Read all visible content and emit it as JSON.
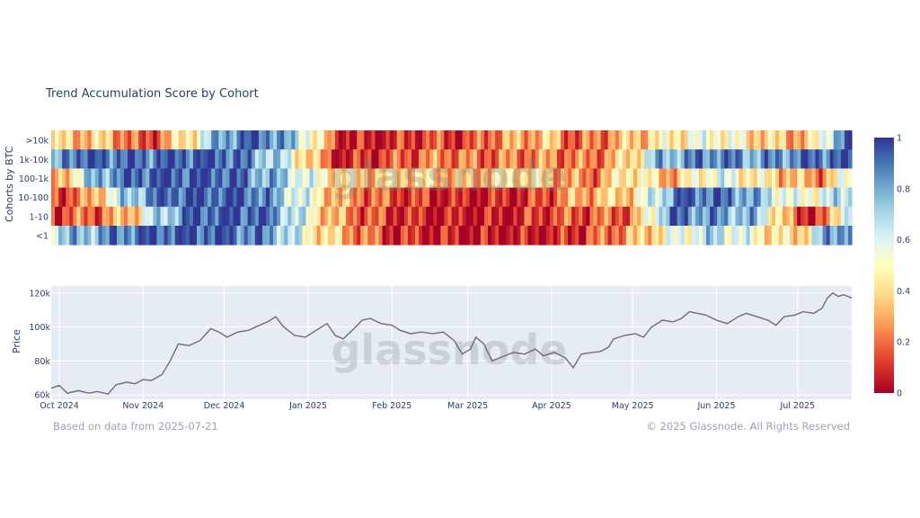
{
  "title": "Trend Accumulation Score by Cohort",
  "watermark": "glassnode",
  "footer": {
    "left": "Based on data from 2025-07-21",
    "right": "© 2025 Glassnode. All Rights Reserved"
  },
  "chart_data": [
    {
      "type": "heatmap",
      "title": "Trend Accumulation Score by Cohort",
      "ylabel": "Cohorts by BTC",
      "rows": [
        ">10k",
        "1k-10k",
        "100-1k",
        "10-100",
        "1-10",
        "<1"
      ],
      "x_range": [
        "2024-09-28",
        "2025-07-21"
      ],
      "colorscale": {
        "range": [
          0,
          1
        ],
        "ticks": [
          "0",
          "0.2",
          "0.4",
          "0.6",
          "0.8",
          "1"
        ],
        "colors": [
          "#a50026",
          "#d73027",
          "#f46d43",
          "#fdae61",
          "#fee090",
          "#ffffbf",
          "#e0f3f8",
          "#abd9e9",
          "#74add1",
          "#4575b4",
          "#313695"
        ]
      },
      "x_tick_labels": [
        "Oct 2024",
        "Nov 2024",
        "Dec 2024",
        "Jan 2025",
        "Feb 2025",
        "Mar 2025",
        "Apr 2025",
        "May 2025",
        "Jun 2025",
        "Jul 2025"
      ],
      "series": [
        {
          "name": ">10k",
          "keyframes": [
            [
              "2024-09-28",
              0.35
            ],
            [
              "2024-10-20",
              0.35
            ],
            [
              "2024-11-01",
              0.1
            ],
            [
              "2024-11-20",
              0.5
            ],
            [
              "2024-12-01",
              0.85
            ],
            [
              "2024-12-15",
              0.95
            ],
            [
              "2025-01-01",
              0.6
            ],
            [
              "2025-01-12",
              0.1
            ],
            [
              "2025-01-25",
              0.05
            ],
            [
              "2025-02-15",
              0.15
            ],
            [
              "2025-03-01",
              0.1
            ],
            [
              "2025-03-10",
              0.25
            ],
            [
              "2025-04-01",
              0.35
            ],
            [
              "2025-04-10",
              0.15
            ],
            [
              "2025-05-01",
              0.35
            ],
            [
              "2025-05-15",
              0.45
            ],
            [
              "2025-06-01",
              0.55
            ],
            [
              "2025-06-15",
              0.4
            ],
            [
              "2025-07-05",
              0.3
            ],
            [
              "2025-07-15",
              0.8
            ],
            [
              "2025-07-21",
              0.95
            ]
          ]
        },
        {
          "name": "1k-10k",
          "keyframes": [
            [
              "2024-09-28",
              0.6
            ],
            [
              "2024-10-05",
              0.95
            ],
            [
              "2024-11-01",
              0.9
            ],
            [
              "2024-11-15",
              0.95
            ],
            [
              "2024-12-01",
              0.95
            ],
            [
              "2024-12-20",
              0.7
            ],
            [
              "2025-01-01",
              0.4
            ],
            [
              "2025-01-12",
              0.05
            ],
            [
              "2025-02-01",
              0.15
            ],
            [
              "2025-02-20",
              0.25
            ],
            [
              "2025-03-05",
              0.2
            ],
            [
              "2025-04-01",
              0.25
            ],
            [
              "2025-04-15",
              0.2
            ],
            [
              "2025-05-01",
              0.4
            ],
            [
              "2025-05-10",
              0.75
            ],
            [
              "2025-06-01",
              0.9
            ],
            [
              "2025-06-15",
              0.8
            ],
            [
              "2025-07-05",
              0.9
            ],
            [
              "2025-07-21",
              0.95
            ]
          ]
        },
        {
          "name": "100-1k",
          "keyframes": [
            [
              "2024-09-28",
              0.2
            ],
            [
              "2024-10-15",
              0.8
            ],
            [
              "2024-11-01",
              0.95
            ],
            [
              "2024-12-01",
              0.95
            ],
            [
              "2024-12-25",
              0.7
            ],
            [
              "2025-01-05",
              0.5
            ],
            [
              "2025-01-20",
              0.35
            ],
            [
              "2025-02-10",
              0.4
            ],
            [
              "2025-03-01",
              0.3
            ],
            [
              "2025-03-20",
              0.45
            ],
            [
              "2025-04-15",
              0.2
            ],
            [
              "2025-05-01",
              0.5
            ],
            [
              "2025-05-15",
              0.3
            ],
            [
              "2025-06-01",
              0.6
            ],
            [
              "2025-06-20",
              0.4
            ],
            [
              "2025-07-10",
              0.25
            ],
            [
              "2025-07-21",
              0.6
            ]
          ]
        },
        {
          "name": "10-100",
          "keyframes": [
            [
              "2024-09-28",
              0.15
            ],
            [
              "2024-10-10",
              0.2
            ],
            [
              "2024-10-25",
              0.7
            ],
            [
              "2024-11-10",
              0.95
            ],
            [
              "2024-12-10",
              0.95
            ],
            [
              "2025-01-01",
              0.55
            ],
            [
              "2025-01-12",
              0.3
            ],
            [
              "2025-02-01",
              0.15
            ],
            [
              "2025-03-01",
              0.05
            ],
            [
              "2025-03-25",
              0.1
            ],
            [
              "2025-04-10",
              0.3
            ],
            [
              "2025-05-01",
              0.4
            ],
            [
              "2025-05-20",
              0.95
            ],
            [
              "2025-06-10",
              0.85
            ],
            [
              "2025-07-01",
              0.5
            ],
            [
              "2025-07-21",
              0.7
            ]
          ]
        },
        {
          "name": "1-10",
          "keyframes": [
            [
              "2024-09-28",
              0.15
            ],
            [
              "2024-10-15",
              0.2
            ],
            [
              "2024-10-28",
              0.35
            ],
            [
              "2024-11-05",
              0.65
            ],
            [
              "2024-11-20",
              0.95
            ],
            [
              "2024-12-15",
              0.95
            ],
            [
              "2025-01-01",
              0.55
            ],
            [
              "2025-01-10",
              0.3
            ],
            [
              "2025-01-25",
              0.15
            ],
            [
              "2025-02-15",
              0.05
            ],
            [
              "2025-03-15",
              0.05
            ],
            [
              "2025-04-01",
              0.15
            ],
            [
              "2025-05-01",
              0.2
            ],
            [
              "2025-05-15",
              0.9
            ],
            [
              "2025-06-15",
              0.75
            ],
            [
              "2025-06-25",
              0.4
            ],
            [
              "2025-07-01",
              0.1
            ],
            [
              "2025-07-12",
              0.15
            ],
            [
              "2025-07-21",
              0.85
            ]
          ]
        },
        {
          "name": "<1",
          "keyframes": [
            [
              "2024-09-28",
              0.7
            ],
            [
              "2024-10-15",
              0.8
            ],
            [
              "2024-11-01",
              0.95
            ],
            [
              "2024-12-01",
              0.95
            ],
            [
              "2024-12-20",
              0.8
            ],
            [
              "2025-01-01",
              0.5
            ],
            [
              "2025-01-15",
              0.3
            ],
            [
              "2025-02-01",
              0.1
            ],
            [
              "2025-03-01",
              0.05
            ],
            [
              "2025-04-01",
              0.05
            ],
            [
              "2025-04-15",
              0.15
            ],
            [
              "2025-05-01",
              0.3
            ],
            [
              "2025-05-15",
              0.5
            ],
            [
              "2025-06-01",
              0.7
            ],
            [
              "2025-06-15",
              0.5
            ],
            [
              "2025-07-01",
              0.35
            ],
            [
              "2025-07-12",
              0.8
            ],
            [
              "2025-07-21",
              0.95
            ]
          ]
        }
      ]
    },
    {
      "type": "line",
      "ylabel": "Price",
      "x_range": [
        "2024-09-28",
        "2025-07-21"
      ],
      "ylim": [
        59000,
        122000
      ],
      "y_tick_labels": [
        "60k",
        "80k",
        "100k",
        "120k"
      ],
      "y_tick_values": [
        60000,
        80000,
        100000,
        120000
      ],
      "x_tick_labels": [
        "Oct 2024",
        "Nov 2024",
        "Dec 2024",
        "Jan 2025",
        "Feb 2025",
        "Mar 2025",
        "Apr 2025",
        "May 2025",
        "Jun 2025",
        "Jul 2025"
      ],
      "x_tick_dates": [
        "2024-10-01",
        "2024-11-01",
        "2024-12-01",
        "2025-01-01",
        "2025-02-01",
        "2025-03-01",
        "2025-04-01",
        "2025-05-01",
        "2025-06-01",
        "2025-07-01"
      ],
      "series": [
        {
          "color": "#6e6e6e",
          "points": [
            [
              "2024-09-28",
              64000
            ],
            [
              "2024-10-01",
              65500
            ],
            [
              "2024-10-04",
              61000
            ],
            [
              "2024-10-08",
              62500
            ],
            [
              "2024-10-12",
              61000
            ],
            [
              "2024-10-15",
              62000
            ],
            [
              "2024-10-19",
              60500
            ],
            [
              "2024-10-22",
              66000
            ],
            [
              "2024-10-26",
              67500
            ],
            [
              "2024-10-29",
              66500
            ],
            [
              "2024-11-01",
              69000
            ],
            [
              "2024-11-04",
              68500
            ],
            [
              "2024-11-08",
              72000
            ],
            [
              "2024-11-11",
              80000
            ],
            [
              "2024-11-14",
              90000
            ],
            [
              "2024-11-18",
              89000
            ],
            [
              "2024-11-22",
              92000
            ],
            [
              "2024-11-26",
              99000
            ],
            [
              "2024-11-29",
              97000
            ],
            [
              "2024-12-02",
              94000
            ],
            [
              "2024-12-06",
              97000
            ],
            [
              "2024-12-10",
              98000
            ],
            [
              "2024-12-14",
              101000
            ],
            [
              "2024-12-17",
              103000
            ],
            [
              "2024-12-20",
              106000
            ],
            [
              "2024-12-23",
              100000
            ],
            [
              "2024-12-27",
              95000
            ],
            [
              "2024-12-31",
              94000
            ],
            [
              "2025-01-04",
              98000
            ],
            [
              "2025-01-08",
              102000
            ],
            [
              "2025-01-11",
              95000
            ],
            [
              "2025-01-14",
              93000
            ],
            [
              "2025-01-18",
              99000
            ],
            [
              "2025-01-21",
              104000
            ],
            [
              "2025-01-24",
              105000
            ],
            [
              "2025-01-28",
              102000
            ],
            [
              "2025-02-01",
              101000
            ],
            [
              "2025-02-04",
              98000
            ],
            [
              "2025-02-08",
              96000
            ],
            [
              "2025-02-12",
              97000
            ],
            [
              "2025-02-16",
              96000
            ],
            [
              "2025-02-20",
              97000
            ],
            [
              "2025-02-24",
              92000
            ],
            [
              "2025-02-27",
              84000
            ],
            [
              "2025-03-02",
              87000
            ],
            [
              "2025-03-04",
              94000
            ],
            [
              "2025-03-07",
              90000
            ],
            [
              "2025-03-10",
              80000
            ],
            [
              "2025-03-13",
              82000
            ],
            [
              "2025-03-18",
              85000
            ],
            [
              "2025-03-22",
              84000
            ],
            [
              "2025-03-26",
              87000
            ],
            [
              "2025-03-29",
              83000
            ],
            [
              "2025-04-02",
              85000
            ],
            [
              "2025-04-06",
              82000
            ],
            [
              "2025-04-09",
              76000
            ],
            [
              "2025-04-12",
              84000
            ],
            [
              "2025-04-16",
              85000
            ],
            [
              "2025-04-19",
              85500
            ],
            [
              "2025-04-22",
              88000
            ],
            [
              "2025-04-24",
              93000
            ],
            [
              "2025-04-28",
              95000
            ],
            [
              "2025-05-02",
              96000
            ],
            [
              "2025-05-05",
              94000
            ],
            [
              "2025-05-08",
              100000
            ],
            [
              "2025-05-12",
              104000
            ],
            [
              "2025-05-16",
              103000
            ],
            [
              "2025-05-19",
              105000
            ],
            [
              "2025-05-22",
              109000
            ],
            [
              "2025-05-25",
              108000
            ],
            [
              "2025-05-28",
              107000
            ],
            [
              "2025-06-01",
              104000
            ],
            [
              "2025-06-05",
              102000
            ],
            [
              "2025-06-09",
              106000
            ],
            [
              "2025-06-12",
              108000
            ],
            [
              "2025-06-16",
              106000
            ],
            [
              "2025-06-20",
              104000
            ],
            [
              "2025-06-23",
              101000
            ],
            [
              "2025-06-26",
              106000
            ],
            [
              "2025-06-30",
              107000
            ],
            [
              "2025-07-03",
              109000
            ],
            [
              "2025-07-07",
              108000
            ],
            [
              "2025-07-10",
              111000
            ],
            [
              "2025-07-12",
              117000
            ],
            [
              "2025-07-14",
              120000
            ],
            [
              "2025-07-16",
              118000
            ],
            [
              "2025-07-18",
              119000
            ],
            [
              "2025-07-21",
              117000
            ]
          ]
        }
      ]
    }
  ]
}
